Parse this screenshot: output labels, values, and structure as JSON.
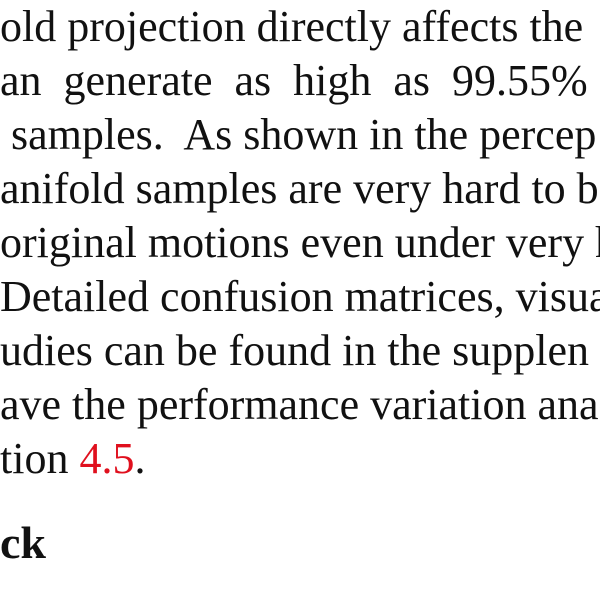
{
  "paragraph": {
    "lines": [
      "old projection directly affects the",
      "an  generate  as  high  as  99.55%",
      " samples.  As shown in the percep",
      "anifold samples are very hard to be",
      "original motions even under very h",
      "Detailed confusion matrices, visua",
      "udies can be found in the supplen",
      "ave the performance variation ana"
    ],
    "last_line_prefix": "tion ",
    "last_line_ref": "4.5",
    "last_line_suffix": "."
  },
  "section_heading": "ck",
  "colors": {
    "text": "#111111",
    "reference_link": "#e0101e"
  }
}
